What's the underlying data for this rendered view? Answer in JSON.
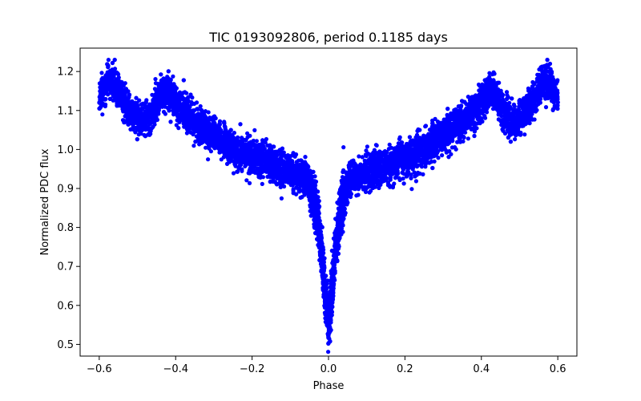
{
  "chart_data": {
    "type": "scatter",
    "title": "TIC 0193092806, period 0.1185 days",
    "xlabel": "Phase",
    "ylabel": "Normalized PDC flux",
    "xlim": [
      -0.65,
      0.65
    ],
    "ylim": [
      0.47,
      1.26
    ],
    "xticks": [
      -0.6,
      -0.4,
      -0.2,
      0.0,
      0.2,
      0.4,
      0.6
    ],
    "xtick_labels": [
      "−0.6",
      "−0.4",
      "−0.2",
      "0.0",
      "0.2",
      "0.4",
      "0.6"
    ],
    "yticks": [
      0.5,
      0.6,
      0.7,
      0.8,
      0.9,
      1.0,
      1.1,
      1.2
    ],
    "ytick_labels": [
      "0.5",
      "0.6",
      "0.7",
      "0.8",
      "0.9",
      "1.0",
      "1.1",
      "1.2"
    ],
    "marker_color": "#0000ff",
    "series": [
      {
        "name": "flux",
        "profile_x": [
          -0.6,
          -0.58,
          -0.56,
          -0.54,
          -0.52,
          -0.5,
          -0.48,
          -0.46,
          -0.44,
          -0.42,
          -0.4,
          -0.35,
          -0.3,
          -0.25,
          -0.2,
          -0.15,
          -0.1,
          -0.08,
          -0.06,
          -0.05,
          -0.04,
          -0.03,
          -0.02,
          -0.01,
          0.0,
          0.01,
          0.02,
          0.03,
          0.04,
          0.05,
          0.06,
          0.08,
          0.1,
          0.15,
          0.2,
          0.25,
          0.3,
          0.35,
          0.4,
          0.42,
          0.44,
          0.46,
          0.48,
          0.5,
          0.52,
          0.54,
          0.56,
          0.58,
          0.6
        ],
        "profile_y": [
          1.13,
          1.17,
          1.17,
          1.13,
          1.1,
          1.08,
          1.07,
          1.09,
          1.14,
          1.15,
          1.12,
          1.07,
          1.04,
          1.0,
          0.98,
          0.96,
          0.94,
          0.93,
          0.93,
          0.91,
          0.88,
          0.84,
          0.76,
          0.64,
          0.55,
          0.64,
          0.76,
          0.84,
          0.88,
          0.91,
          0.93,
          0.93,
          0.94,
          0.96,
          0.98,
          1.0,
          1.04,
          1.07,
          1.12,
          1.15,
          1.14,
          1.09,
          1.07,
          1.08,
          1.1,
          1.13,
          1.17,
          1.17,
          1.13
        ],
        "n_points": 9000
      }
    ]
  }
}
